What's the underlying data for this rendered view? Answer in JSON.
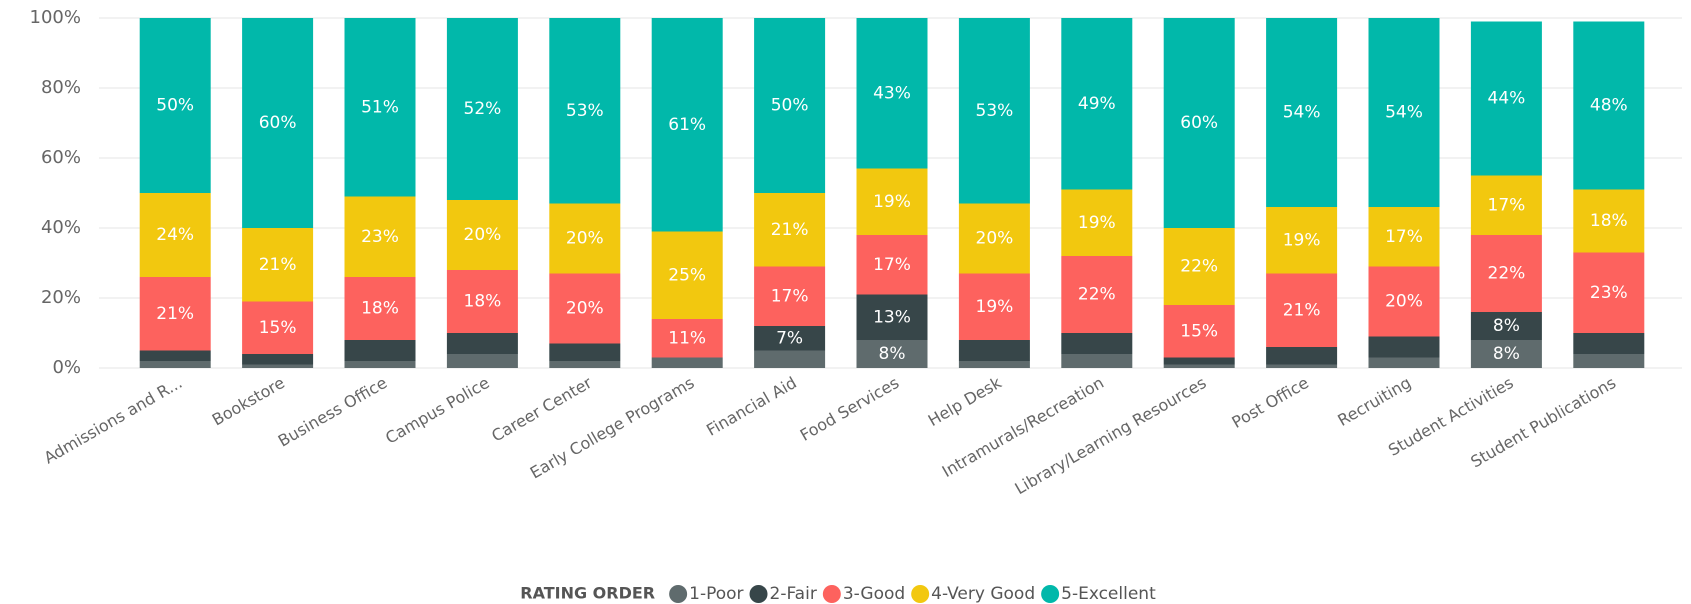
{
  "chart_data": {
    "type": "stacked_bar_100",
    "categories": [
      "Admissions and R...",
      "Bookstore",
      "Business Office",
      "Campus Police",
      "Career Center",
      "Early College Programs",
      "Financial Aid",
      "Food Services",
      "Help Desk",
      "Intramurals/Recreation",
      "Library/Learning Resources",
      "Post Office",
      "Recruiting",
      "Student Activities",
      "Student Publications"
    ],
    "series": [
      {
        "name": "1-Poor",
        "color": "#5f6b6d",
        "values": [
          2,
          1,
          2,
          4,
          2,
          3,
          5,
          8,
          2,
          4,
          1,
          1,
          3,
          8,
          4
        ],
        "value_labels": [
          null,
          null,
          null,
          null,
          null,
          null,
          null,
          "8%",
          null,
          null,
          null,
          null,
          null,
          "8%",
          null
        ]
      },
      {
        "name": "2-Fair",
        "color": "#374649",
        "values": [
          3,
          3,
          6,
          6,
          5,
          0,
          7,
          13,
          6,
          6,
          2,
          5,
          6,
          8,
          6
        ],
        "value_labels": [
          null,
          null,
          null,
          null,
          null,
          null,
          "7%",
          "13%",
          null,
          null,
          null,
          null,
          null,
          "8%",
          null
        ]
      },
      {
        "name": "3-Good",
        "color": "#fd625e",
        "values": [
          21,
          15,
          18,
          18,
          20,
          11,
          17,
          17,
          19,
          22,
          15,
          21,
          20,
          22,
          23
        ],
        "value_labels": [
          "21%",
          "15%",
          "18%",
          "18%",
          "20%",
          "11%",
          "17%",
          "17%",
          "19%",
          "22%",
          "15%",
          "21%",
          "20%",
          "22%",
          "23%"
        ]
      },
      {
        "name": "4-Very Good",
        "color": "#f2c80f",
        "values": [
          24,
          21,
          23,
          20,
          20,
          25,
          21,
          19,
          20,
          19,
          22,
          19,
          17,
          17,
          18
        ],
        "value_labels": [
          "24%",
          "21%",
          "23%",
          "20%",
          "20%",
          "25%",
          "21%",
          "19%",
          "20%",
          "19%",
          "22%",
          "19%",
          "17%",
          "17%",
          "18%"
        ]
      },
      {
        "name": "5-Excellent",
        "color": "#01b8aa",
        "values": [
          50,
          60,
          51,
          52,
          53,
          61,
          50,
          43,
          53,
          49,
          60,
          54,
          54,
          44,
          48
        ],
        "value_labels": [
          "50%",
          "60%",
          "51%",
          "52%",
          "53%",
          "61%",
          "50%",
          "43%",
          "53%",
          "49%",
          "60%",
          "54%",
          "54%",
          "44%",
          "48%"
        ]
      }
    ],
    "ylim": [
      0,
      100
    ],
    "yticks": [
      {
        "value": 0,
        "label": "0%"
      },
      {
        "value": 20,
        "label": "20%"
      },
      {
        "value": 40,
        "label": "40%"
      },
      {
        "value": 60,
        "label": "60%"
      },
      {
        "value": 80,
        "label": "80%"
      },
      {
        "value": 100,
        "label": "100%"
      }
    ],
    "grid": true,
    "legend_title": "RATING ORDER",
    "legend_position": "bottom"
  }
}
